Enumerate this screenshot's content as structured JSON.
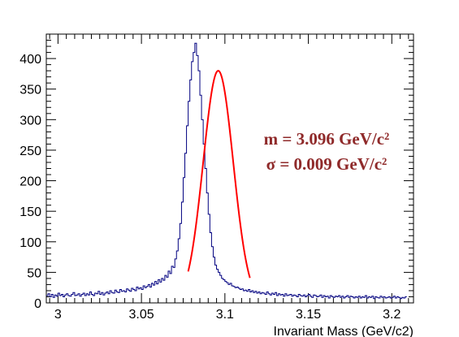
{
  "chart_data": {
    "type": "histogram",
    "xlabel": "Invariant Mass (GeV/c2)",
    "ylabel": "",
    "xlim": [
      2.993,
      3.213
    ],
    "ylim": [
      0,
      440
    ],
    "x_ticks": [
      3,
      3.05,
      3.1,
      3.15,
      3.2
    ],
    "x_tick_labels": [
      "3",
      "3.05",
      "3.1",
      "3.15",
      "3.2"
    ],
    "y_ticks": [
      0,
      50,
      100,
      150,
      200,
      250,
      300,
      350,
      400
    ],
    "y_tick_labels": [
      "0",
      "50",
      "100",
      "150",
      "200",
      "250",
      "300",
      "350",
      "400"
    ],
    "grid": false,
    "bin_width": 0.001,
    "series": [
      {
        "kind": "histogram",
        "color": "#000080",
        "x_start": 2.993,
        "values": [
          12,
          15,
          10,
          14,
          9,
          13,
          11,
          16,
          12,
          14,
          10,
          13,
          15,
          12,
          11,
          14,
          17,
          12,
          13,
          15,
          11,
          14,
          16,
          12,
          15,
          13,
          18,
          14,
          12,
          16,
          15,
          19,
          14,
          17,
          13,
          16,
          18,
          15,
          20,
          17,
          16,
          21,
          18,
          17,
          22,
          19,
          20,
          18,
          23,
          21,
          19,
          24,
          22,
          20,
          26,
          23,
          25,
          22,
          28,
          25,
          27,
          30,
          26,
          32,
          29,
          35,
          31,
          38,
          34,
          40,
          37,
          45,
          42,
          52,
          48,
          60,
          58,
          72,
          85,
          105,
          130,
          165,
          205,
          245,
          290,
          330,
          365,
          395,
          410,
          425,
          405,
          380,
          340,
          300,
          260,
          220,
          180,
          145,
          115,
          92,
          75,
          62,
          55,
          50,
          45,
          40,
          38,
          35,
          33,
          30,
          32,
          28,
          27,
          25,
          26,
          24,
          22,
          23,
          20,
          21,
          19,
          22,
          18,
          20,
          17,
          19,
          16,
          18,
          15,
          17,
          16,
          14,
          18,
          15,
          13,
          16,
          14,
          17,
          12,
          15,
          13,
          14,
          11,
          15,
          12,
          13,
          14,
          11,
          13,
          12,
          10,
          14,
          12,
          11,
          13,
          10,
          12,
          14,
          11,
          9,
          13,
          12,
          10,
          11,
          13,
          9,
          12,
          10,
          11,
          8,
          12,
          10,
          9,
          11,
          10,
          12,
          9,
          11,
          8,
          10,
          12,
          9,
          11,
          10,
          8,
          10,
          9,
          11,
          8,
          10,
          9,
          12,
          8,
          10,
          9,
          11,
          7,
          10,
          9,
          8,
          11,
          9,
          10,
          8,
          9,
          10,
          8,
          9,
          11,
          8,
          10,
          9,
          7,
          9,
          8,
          10
        ]
      },
      {
        "kind": "fit",
        "function": "gaussian",
        "color": "#ff0000",
        "mean": 3.096,
        "sigma": 0.009,
        "amplitude": 380,
        "x_range": [
          3.078,
          3.115
        ]
      }
    ],
    "annotations": [
      "m = 3.096 GeV/c²",
      "σ = 0.009 GeV/c²"
    ]
  }
}
